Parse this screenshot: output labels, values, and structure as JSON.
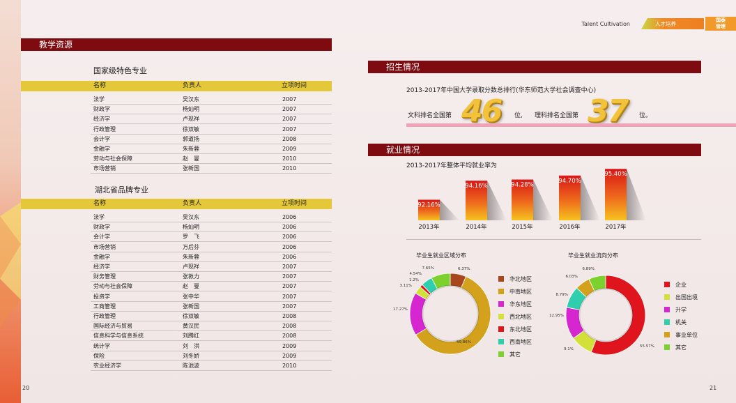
{
  "header": {
    "talent_label": "Talent Cultivation",
    "talent_cn": "人才培养",
    "logo_line1": "国泰",
    "logo_line2": "管理"
  },
  "left": {
    "section_title": "教学资源",
    "table1": {
      "title": "国家级特色专业",
      "headers": [
        "名称",
        "负责人",
        "立项时间"
      ],
      "rows": [
        [
          "法学",
          "吴汉东",
          "2007"
        ],
        [
          "财政学",
          "杨灿明",
          "2007"
        ],
        [
          "经济学",
          "卢现祥",
          "2007"
        ],
        [
          "行政管理",
          "徐双敏",
          "2007"
        ],
        [
          "会计学",
          "郭道扬",
          "2008"
        ],
        [
          "金融学",
          "朱新蓉",
          "2009"
        ],
        [
          "劳动与社会保障",
          "赵　曼",
          "2010"
        ],
        [
          "市场营销",
          "张新国",
          "2010"
        ]
      ]
    },
    "table2": {
      "title": "湖北省品牌专业",
      "headers": [
        "名称",
        "负责人",
        "立项时间"
      ],
      "rows": [
        [
          "法学",
          "吴汉东",
          "2006"
        ],
        [
          "财政学",
          "杨灿明",
          "2006"
        ],
        [
          "会计学",
          "罗　飞",
          "2006"
        ],
        [
          "市场营销",
          "万后芬",
          "2006"
        ],
        [
          "金融学",
          "朱新蓉",
          "2006"
        ],
        [
          "经济学",
          "卢现祥",
          "2007"
        ],
        [
          "财务管理",
          "张敦力",
          "2007"
        ],
        [
          "劳动与社会保障",
          "赵　曼",
          "2007"
        ],
        [
          "投资学",
          "张中华",
          "2007"
        ],
        [
          "工商管理",
          "张新国",
          "2007"
        ],
        [
          "行政管理",
          "徐双敏",
          "2008"
        ],
        [
          "国际经济与贸易",
          "黄汉民",
          "2008"
        ],
        [
          "信息科学与信息系统",
          "刘腾红",
          "2008"
        ],
        [
          "统计学",
          "刘　洪",
          "2009"
        ],
        [
          "保险",
          "刘冬娇",
          "2009"
        ],
        [
          "农业经济学",
          "陈池波",
          "2010"
        ]
      ]
    },
    "page_number": "20"
  },
  "right": {
    "enroll": {
      "section_title": "招生情况",
      "subtitle": "2013-2017年中国大学录取分数总排行(华东师范大学社会调查中心)",
      "prefix1": "文科排名全国第",
      "num1": "46",
      "suffix1": "位,",
      "prefix2": "理科排名全国第",
      "num2": "37",
      "suffix2": "位。"
    },
    "employ": {
      "section_title": "就业情况",
      "subtitle": "2013-2017年整体平均就业率为"
    },
    "page_number": "21"
  },
  "chart_data": [
    {
      "type": "bar",
      "title": "2013-2017年整体平均就业率为",
      "categories": [
        "2013年",
        "2014年",
        "2015年",
        "2016年",
        "2017年"
      ],
      "values": [
        92.16,
        94.16,
        94.28,
        94.7,
        95.4
      ],
      "data_labels": [
        "92.16%",
        "94.16%",
        "94.28%",
        "94.70%",
        "95.40%"
      ],
      "ylim": [
        90,
        96
      ],
      "grid": false
    },
    {
      "type": "pie",
      "title": "毕业生就业区域分布",
      "legend_position": "right",
      "series": [
        {
          "name": "华北地区",
          "value": 6.37,
          "label": "6.37%",
          "color": "#a8461e"
        },
        {
          "name": "中南地区",
          "value": 59.86,
          "label": "59.86%",
          "color": "#d3a11c"
        },
        {
          "name": "华东地区",
          "value": 17.27,
          "label": "17.27%",
          "color": "#d526cf"
        },
        {
          "name": "西北地区",
          "value": 3.11,
          "label": "3.11%",
          "color": "#d4e03a"
        },
        {
          "name": "东北地区",
          "value": 1.2,
          "label": "1.2%",
          "color": "#e0141d"
        },
        {
          "name": "西南地区",
          "value": 4.54,
          "label": "4.54%",
          "color": "#2fcfae"
        },
        {
          "name": "其它",
          "value": 7.65,
          "label": "7.65%",
          "color": "#7dd12e"
        }
      ]
    },
    {
      "type": "pie",
      "title": "毕业生就业流向分布",
      "legend_position": "right",
      "series": [
        {
          "name": "企业",
          "value": 55.57,
          "label": "55.57%",
          "color": "#e0141d"
        },
        {
          "name": "出国出境",
          "value": 9.1,
          "label": "9.1%",
          "color": "#d4e03a"
        },
        {
          "name": "升学",
          "value": 12.95,
          "label": "12.95%",
          "color": "#d526cf"
        },
        {
          "name": "机关",
          "value": 8.79,
          "label": "8.79%",
          "color": "#2fcfae"
        },
        {
          "name": "事业单位",
          "value": 6.03,
          "label": "6.03%",
          "color": "#d3a11c"
        },
        {
          "name": "其它",
          "value": 6.89,
          "label": "6.89%",
          "color": "#7dd12e"
        }
      ]
    }
  ]
}
